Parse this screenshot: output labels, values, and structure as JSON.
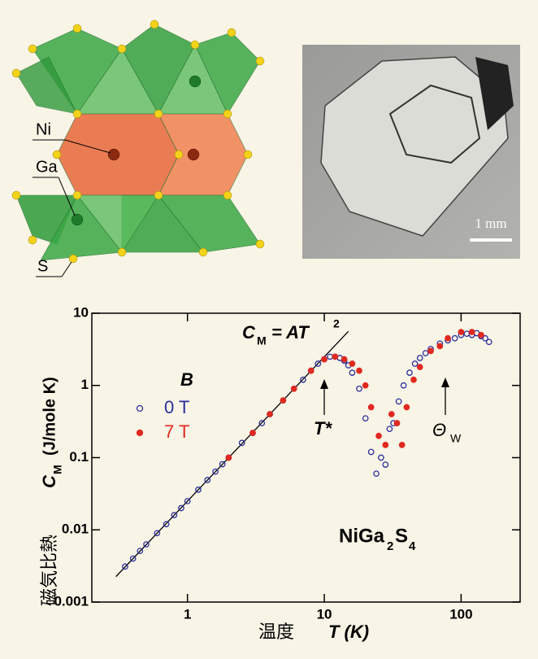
{
  "structure_labels": [
    "Ni",
    "Ga",
    "S"
  ],
  "photo_scale": "1 mm",
  "chart_data": {
    "type": "scatter",
    "log_x": true,
    "log_y": true,
    "xlabel_jp": "温度",
    "xlabel_sym": "T (K)",
    "ylabel_jp": "磁気比熱",
    "ylabel_sym": "C",
    "ylabel_sub": "M",
    "ylabel_unit": "(J/mole K)",
    "xlim": [
      0.2,
      270
    ],
    "xticks": [
      1,
      10,
      100
    ],
    "ylim": [
      0.001,
      10
    ],
    "yticks": [
      0.001,
      0.01,
      0.1,
      1,
      10
    ],
    "legend_title": "B",
    "legend_corner": "left",
    "series": [
      {
        "name": "0 T",
        "color": "#2b2f9c",
        "marker": "open",
        "x": [
          0.35,
          0.4,
          0.45,
          0.5,
          0.6,
          0.7,
          0.8,
          0.9,
          1,
          1.2,
          1.4,
          1.6,
          1.8,
          2,
          2.5,
          3,
          3.5,
          4,
          5,
          6,
          7,
          8,
          9,
          10,
          11,
          12,
          13,
          14,
          15,
          16,
          18,
          20,
          22,
          24,
          26,
          28,
          30,
          32,
          35,
          38,
          42,
          46,
          50,
          55,
          60,
          70,
          80,
          90,
          100,
          110,
          120,
          130,
          140,
          150,
          160
        ],
        "values": [
          0.0031,
          0.004,
          0.0051,
          0.0063,
          0.009,
          0.012,
          0.016,
          0.02,
          0.025,
          0.036,
          0.049,
          0.064,
          0.081,
          0.1,
          0.16,
          0.22,
          0.3,
          0.4,
          0.62,
          0.9,
          1.2,
          1.6,
          2.0,
          2.3,
          2.5,
          2.5,
          2.4,
          2.2,
          1.9,
          1.5,
          0.9,
          0.35,
          0.12,
          0.06,
          0.1,
          0.08,
          0.25,
          0.3,
          0.6,
          1.0,
          1.5,
          2.0,
          2.4,
          2.8,
          3.2,
          3.8,
          4.2,
          4.5,
          5.0,
          5.2,
          5.0,
          5.3,
          4.8,
          4.5,
          4.0
        ]
      },
      {
        "name": "7 T",
        "color": "#e0291f",
        "marker": "filled",
        "x": [
          2,
          3,
          4,
          5,
          6,
          8,
          10,
          12,
          14,
          16,
          18,
          20,
          22,
          25,
          28,
          31,
          34,
          37,
          40,
          45,
          50,
          60,
          70,
          80,
          100,
          120,
          140
        ],
        "values": [
          0.1,
          0.22,
          0.4,
          0.62,
          0.9,
          1.6,
          2.3,
          2.5,
          2.3,
          2.0,
          1.6,
          1.0,
          0.5,
          0.2,
          0.15,
          0.4,
          0.3,
          0.15,
          0.5,
          1.2,
          1.8,
          3.0,
          3.5,
          4.5,
          5.5,
          5.5,
          5.0
        ]
      }
    ],
    "fit": {
      "x": [
        0.3,
        15
      ],
      "values": [
        0.00225,
        5.6
      ]
    },
    "fit_label": {
      "sym": "C",
      "sub": "M",
      "rest": "= AT",
      "sup": "2"
    },
    "annotations": {
      "tstar": "T*",
      "theta": "Θ",
      "theta_sub": "W"
    },
    "compound": {
      "a": "NiGa",
      "b": "2",
      "c": "S",
      "d": "4"
    }
  }
}
